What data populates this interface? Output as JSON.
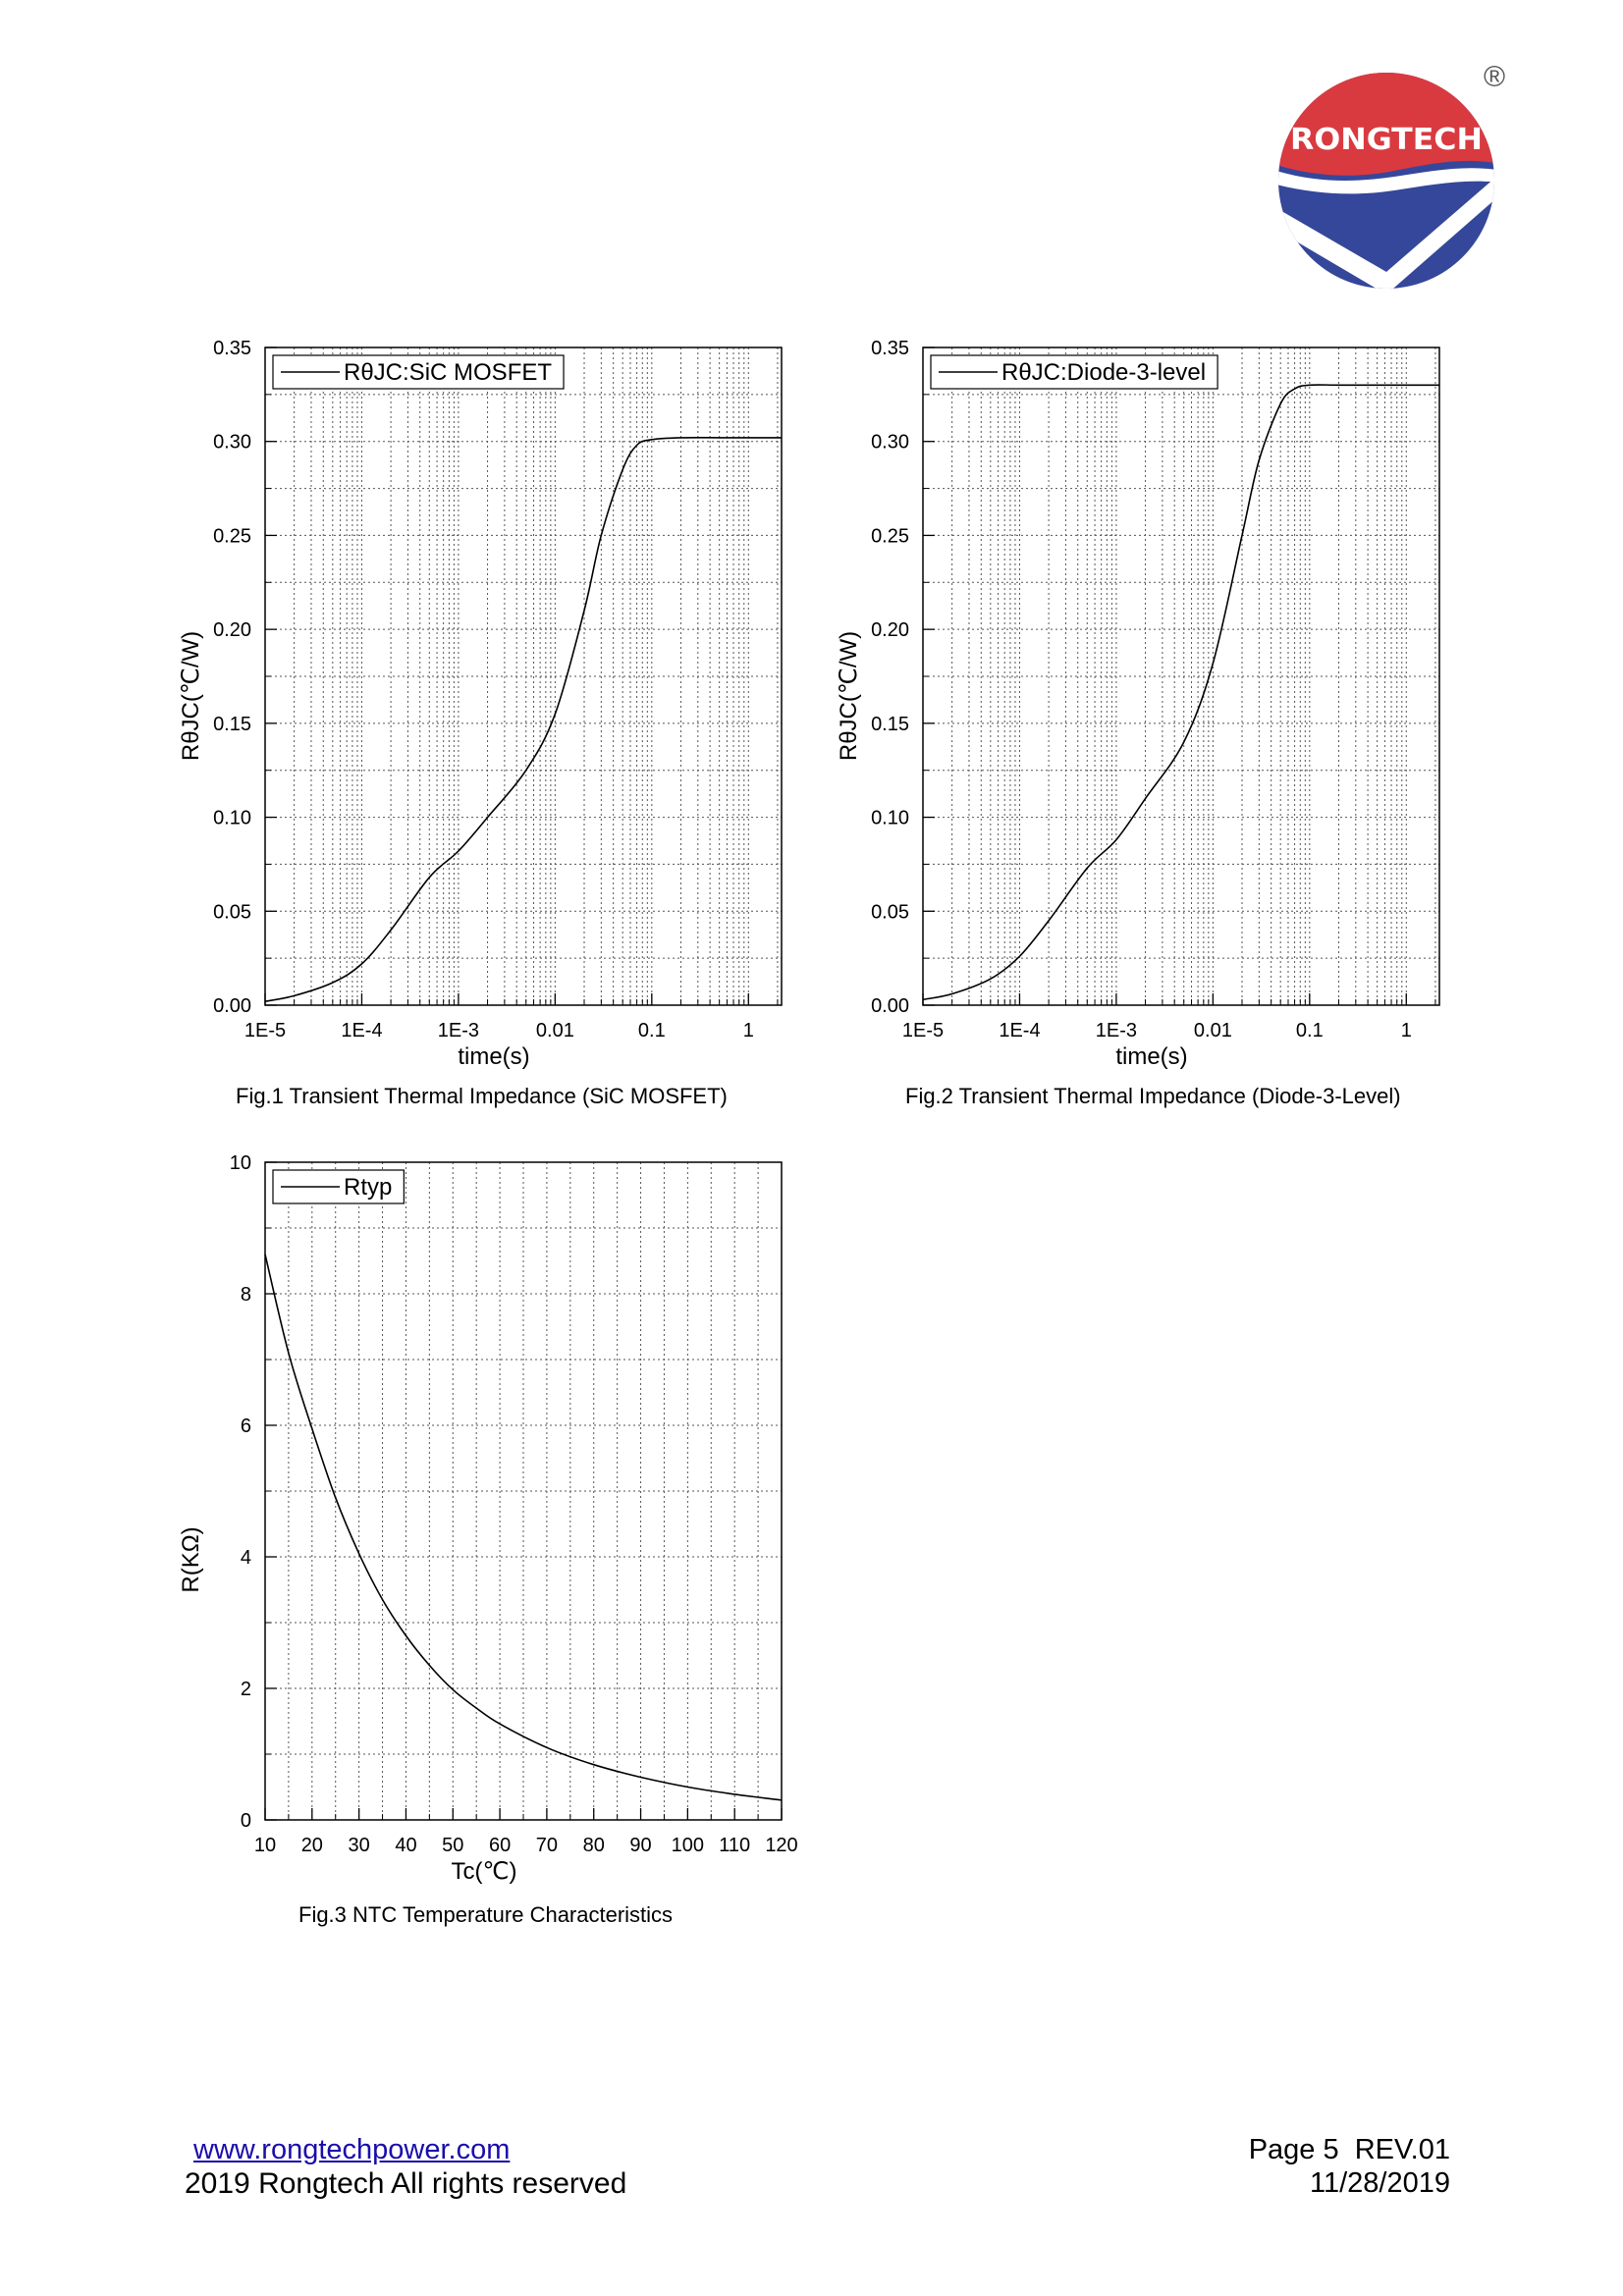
{
  "brand": {
    "name": "RONGTECH",
    "registered_mark": "®",
    "colors": {
      "red": "#d93a40",
      "blue": "#35479a"
    }
  },
  "figures": [
    {
      "caption": "Fig.1 Transient Thermal Impedance (SiC MOSFET)",
      "chart_data": {
        "type": "line",
        "xscale": "log",
        "x_ticks": [
          1e-05,
          0.0001,
          0.001,
          0.01,
          0.1,
          1
        ],
        "x_tick_labels": [
          "1E-5",
          "1E-4",
          "1E-3",
          "0.01",
          "0.1",
          "1"
        ],
        "xlim": [
          1e-05,
          2.2
        ],
        "ylim": [
          0,
          0.35
        ],
        "y_ticks": [
          0,
          0.05,
          0.1,
          0.15,
          0.2,
          0.25,
          0.3,
          0.35
        ],
        "y_tick_labels": [
          "0.00",
          "0.05",
          "0.10",
          "0.15",
          "0.20",
          "0.25",
          "0.30",
          "0.35"
        ],
        "xlabel": "time(s)",
        "ylabel": "RθJC(℃/W)",
        "grid": true,
        "legend": {
          "position": "top-left",
          "label_main": "RθJC",
          "label_sub": ":SiC MOSFET"
        },
        "series": [
          {
            "name": "RθJC:SiC MOSFET",
            "x": [
              1e-05,
              2e-05,
              5e-05,
              0.0001,
              0.0002,
              0.0005,
              0.001,
              0.002,
              0.005,
              0.01,
              0.02,
              0.03,
              0.05,
              0.07,
              0.1,
              0.2,
              0.5,
              1,
              2.2
            ],
            "y": [
              0.002,
              0.005,
              0.012,
              0.022,
              0.04,
              0.068,
              0.082,
              0.1,
              0.125,
              0.155,
              0.21,
              0.25,
              0.285,
              0.298,
              0.301,
              0.302,
              0.302,
              0.302,
              0.302
            ]
          }
        ]
      }
    },
    {
      "caption": "Fig.2 Transient Thermal Impedance (Diode-3-Level)",
      "chart_data": {
        "type": "line",
        "xscale": "log",
        "x_ticks": [
          1e-05,
          0.0001,
          0.001,
          0.01,
          0.1,
          1
        ],
        "x_tick_labels": [
          "1E-5",
          "1E-4",
          "1E-3",
          "0.01",
          "0.1",
          "1"
        ],
        "xlim": [
          1e-05,
          2.2
        ],
        "ylim": [
          0,
          0.35
        ],
        "y_ticks": [
          0,
          0.05,
          0.1,
          0.15,
          0.2,
          0.25,
          0.3,
          0.35
        ],
        "y_tick_labels": [
          "0.00",
          "0.05",
          "0.10",
          "0.15",
          "0.20",
          "0.25",
          "0.30",
          "0.35"
        ],
        "xlabel": "time(s)",
        "ylabel": "RθJC(℃/W)",
        "grid": true,
        "legend": {
          "position": "top-left",
          "label_main": "RθJC",
          "label_sub": ":Diode-3-level"
        },
        "series": [
          {
            "name": "RθJC:Diode-3-level",
            "x": [
              1e-05,
              2e-05,
              5e-05,
              0.0001,
              0.0002,
              0.0005,
              0.001,
              0.002,
              0.005,
              0.01,
              0.02,
              0.03,
              0.05,
              0.07,
              0.1,
              0.2,
              0.5,
              1,
              2.2
            ],
            "y": [
              0.003,
              0.006,
              0.014,
              0.026,
              0.045,
              0.073,
              0.088,
              0.11,
              0.14,
              0.182,
              0.25,
              0.29,
              0.32,
              0.328,
              0.33,
              0.33,
              0.33,
              0.33,
              0.33
            ]
          }
        ]
      }
    },
    {
      "caption": "Fig.3 NTC Temperature Characteristics",
      "chart_data": {
        "type": "line",
        "xscale": "linear",
        "x_ticks": [
          10,
          20,
          30,
          40,
          50,
          60,
          70,
          80,
          90,
          100,
          110,
          120
        ],
        "x_tick_labels": [
          "10",
          "20",
          "30",
          "40",
          "50",
          "60",
          "70",
          "80",
          "90",
          "100",
          "110",
          "120"
        ],
        "xlim": [
          10,
          120
        ],
        "ylim": [
          0,
          10
        ],
        "y_ticks": [
          0,
          2,
          4,
          6,
          8,
          10
        ],
        "y_tick_labels": [
          "0",
          "2",
          "4",
          "6",
          "8",
          "10"
        ],
        "xlabel": "Tc(℃)",
        "ylabel": "R(KΩ)",
        "grid": true,
        "legend": {
          "position": "top-left",
          "label_main": "Rtyp",
          "label_sub": ""
        },
        "series": [
          {
            "name": "Rtyp",
            "x": [
              10,
              15,
              20,
              25,
              30,
              35,
              40,
              45,
              50,
              55,
              60,
              70,
              80,
              90,
              100,
              110,
              120
            ],
            "y": [
              8.6,
              7.1,
              5.95,
              4.9,
              4.05,
              3.35,
              2.8,
              2.35,
              1.98,
              1.7,
              1.46,
              1.1,
              0.84,
              0.65,
              0.5,
              0.39,
              0.3
            ]
          }
        ]
      }
    }
  ],
  "footer": {
    "website": "www.rongtechpower.com",
    "copyright": "2019 Rongtech All rights reserved",
    "page": "Page 5  REV.01",
    "date": "11/28/2019"
  }
}
